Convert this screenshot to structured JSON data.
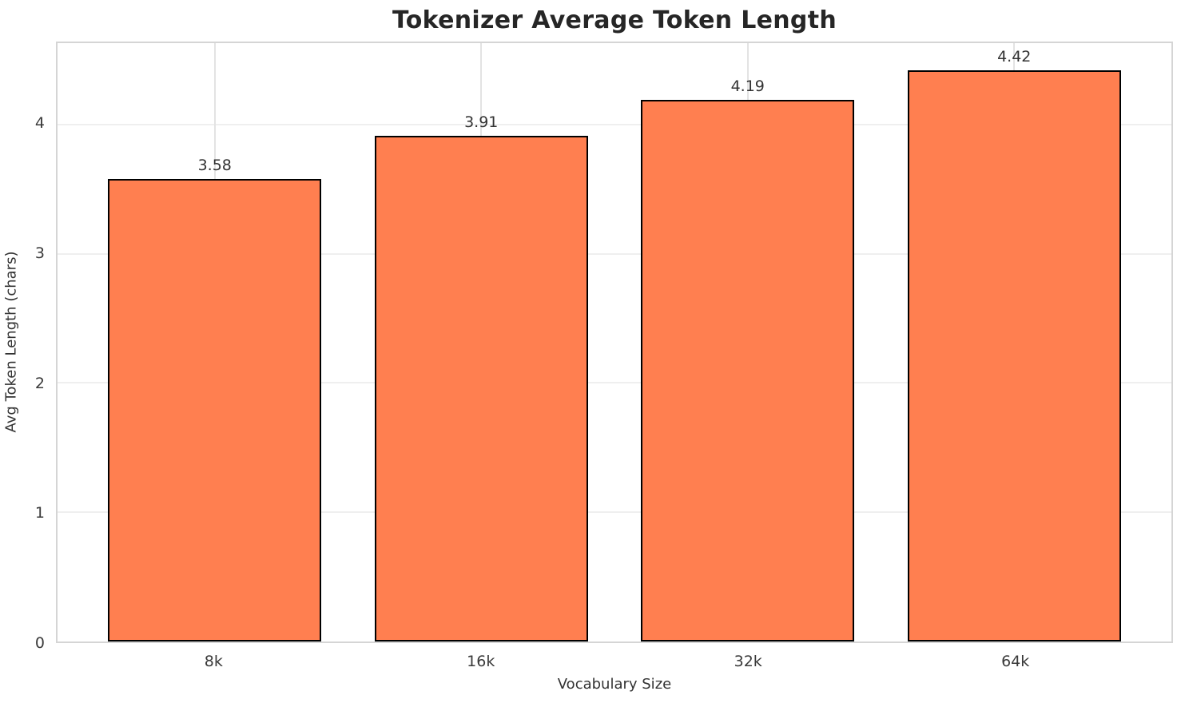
{
  "chart_data": {
    "type": "bar",
    "title": "Tokenizer Average Token Length",
    "xlabel": "Vocabulary Size",
    "ylabel": "Avg Token Length (chars)",
    "categories": [
      "8k",
      "16k",
      "32k",
      "64k"
    ],
    "values": [
      3.58,
      3.91,
      4.19,
      4.42
    ],
    "value_labels": [
      "3.58",
      "3.91",
      "4.19",
      "4.42"
    ],
    "yticks": [
      0,
      1,
      2,
      3,
      4
    ],
    "ylim": [
      0,
      4.63
    ],
    "xlim": [
      -0.59,
      3.59
    ],
    "bar_width_units": 0.8,
    "grid": true,
    "legend": "none",
    "colors": {
      "bar_fill": "#FF7F50",
      "bar_edge": "#000000",
      "grid_h": "#efefef",
      "grid_v": "#e3e3e3",
      "spine": "#d5d5d5",
      "title_text": "#262626",
      "tick_text": "#3a3a3a",
      "label_text": "#333333",
      "background": "#ffffff"
    }
  }
}
